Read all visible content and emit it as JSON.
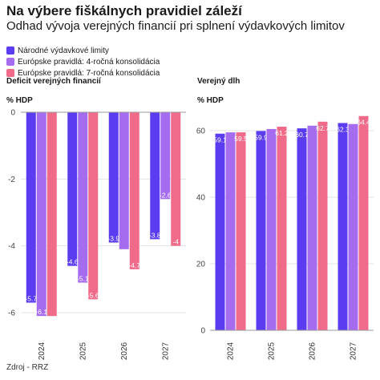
{
  "title": "Na výbere fiškálnych pravidiel záleží",
  "subtitle": "Odhad vývoja verejných financií pri splnení výdavkových limitov",
  "source": "Zdroj - RRZ",
  "legend": [
    {
      "label": "Národné výdavkové limity",
      "color": "#5b3cf0"
    },
    {
      "label": "Európske pravidlá: 4-ročná konsolidácia",
      "color": "#a56cf0"
    },
    {
      "label": "Európske pravidlá: 7-ročná konsolidácia",
      "color": "#f06a8a"
    }
  ],
  "chart_data": [
    {
      "type": "bar",
      "title": "Deficit verejných financií",
      "ylabel": "% HDP",
      "categories": [
        "2024",
        "2025",
        "2026",
        "2027"
      ],
      "yticks": [
        "0",
        "-2",
        "-4",
        "-6"
      ],
      "ylim": [
        -6.2,
        0
      ],
      "series": [
        {
          "name": "Národné výdavkové limity",
          "color": "#5b3cf0",
          "values": [
            -5.7,
            -4.6,
            -3.9,
            -3.8
          ],
          "labels": [
            "-5.7",
            "-4.6",
            "-3.9",
            "-3.8"
          ]
        },
        {
          "name": "Európske pravidlá: 4-ročná konsolidácia",
          "color": "#a56cf0",
          "values": [
            -6.1,
            -5.1,
            -4.1,
            -2.6
          ],
          "labels": [
            "-6.1",
            "-5.1",
            "",
            "-2.6"
          ]
        },
        {
          "name": "Európske pravidlá: 7-ročná konsolidácia",
          "color": "#f06a8a",
          "values": [
            -6.1,
            -5.6,
            -4.7,
            -4.0
          ],
          "labels": [
            "",
            "-5.6",
            "-4.7",
            "-4"
          ]
        }
      ]
    },
    {
      "type": "bar",
      "title": "Verejný dlh",
      "ylabel": "% HDP",
      "categories": [
        "2024",
        "2025",
        "2026",
        "2027"
      ],
      "yticks": [
        "60",
        "40",
        "20",
        "0"
      ],
      "ylim": [
        0,
        65
      ],
      "series": [
        {
          "name": "Národné výdavkové limity",
          "color": "#5b3cf0",
          "values": [
            59.1,
            59.9,
            60.7,
            62.3
          ],
          "labels": [
            "59.1",
            "59.9",
            "60.7",
            "62.3"
          ]
        },
        {
          "name": "Európske pravidlá: 4-ročná konsolidácia",
          "color": "#a56cf0",
          "values": [
            59.5,
            60.5,
            61.5,
            62.0
          ],
          "labels": [
            "",
            "",
            "",
            ""
          ]
        },
        {
          "name": "Európske pravidlá: 7-ročná konsolidácia",
          "color": "#f06a8a",
          "values": [
            59.5,
            61.2,
            62.7,
            64.4
          ],
          "labels": [
            "59.5",
            "61.2",
            "62.7",
            "64.4"
          ]
        }
      ]
    }
  ]
}
